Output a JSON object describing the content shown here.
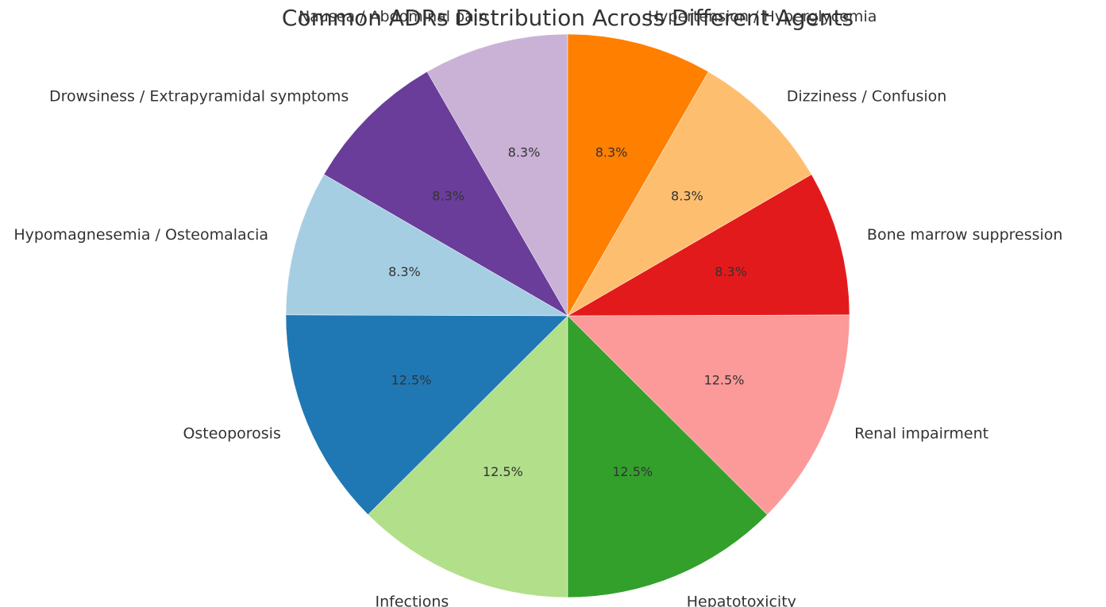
{
  "chart_data": {
    "type": "pie",
    "title": "Common ADRs Distribution Across Different Agents",
    "start_angle_deg": 90,
    "direction": "counterclockwise",
    "slices": [
      {
        "label": "Nausea / Abdominal pain",
        "value": 8.3,
        "pct_label": "8.3%",
        "color": "#cab2d6"
      },
      {
        "label": "Drowsiness / Extrapyramidal symptoms",
        "value": 8.3,
        "pct_label": "8.3%",
        "color": "#6a3d9a"
      },
      {
        "label": "Hypomagnesemia / Osteomalacia",
        "value": 8.3,
        "pct_label": "8.3%",
        "color": "#a6cee3"
      },
      {
        "label": "Osteoporosis",
        "value": 12.5,
        "pct_label": "12.5%",
        "color": "#1f78b4"
      },
      {
        "label": "Infections",
        "value": 12.5,
        "pct_label": "12.5%",
        "color": "#b2df8a"
      },
      {
        "label": "Hepatotoxicity",
        "value": 12.5,
        "pct_label": "12.5%",
        "color": "#33a02c"
      },
      {
        "label": "Renal impairment",
        "value": 12.5,
        "pct_label": "12.5%",
        "color": "#fb9a99"
      },
      {
        "label": "Bone marrow suppression",
        "value": 8.3,
        "pct_label": "8.3%",
        "color": "#e31a1c"
      },
      {
        "label": "Dizziness / Confusion",
        "value": 8.3,
        "pct_label": "8.3%",
        "color": "#fdbf6f"
      },
      {
        "label": "Hypertension / Hyperglycemia",
        "value": 8.3,
        "pct_label": "8.3%",
        "color": "#ff7f00"
      }
    ]
  }
}
